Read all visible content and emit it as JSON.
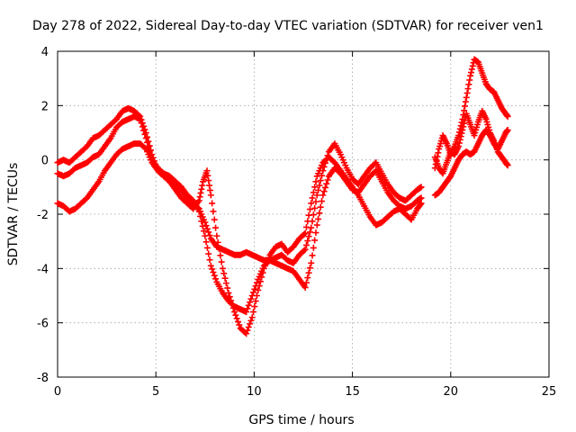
{
  "chart_data": {
    "type": "scatter",
    "title": "Day 278 of 2022, Sidereal Day-to-day VTEC variation (SDTVAR) for receiver ven1",
    "xlabel": "GPS time / hours",
    "ylabel": "SDTVAR / TECUs",
    "xlim": [
      0,
      25
    ],
    "ylim": [
      -8,
      4
    ],
    "x_ticks": [
      0,
      5,
      10,
      15,
      20,
      25
    ],
    "y_ticks": [
      -8,
      -6,
      -4,
      -2,
      0,
      2,
      4
    ],
    "x_tick_labels": [
      "0",
      "5",
      "10",
      "15",
      "20",
      "25"
    ],
    "y_tick_labels": [
      "-8",
      "-6",
      "-4",
      "-2",
      "0",
      "2",
      "4"
    ],
    "grid": true,
    "marker": "plus",
    "color": "#ff0000",
    "series": [
      {
        "points": [
          [
            0.0,
            -0.1
          ],
          [
            0.3,
            0.0
          ],
          [
            0.6,
            -0.1
          ],
          [
            0.9,
            0.1
          ],
          [
            1.2,
            0.3
          ],
          [
            1.5,
            0.5
          ],
          [
            1.8,
            0.8
          ],
          [
            2.1,
            0.9
          ],
          [
            2.4,
            1.1
          ],
          [
            2.7,
            1.3
          ],
          [
            3.0,
            1.5
          ],
          [
            3.3,
            1.8
          ],
          [
            3.6,
            1.9
          ],
          [
            3.9,
            1.8
          ],
          [
            4.2,
            1.6
          ],
          [
            4.5,
            1.0
          ],
          [
            4.8,
            0.2
          ],
          [
            5.1,
            -0.4
          ],
          [
            5.4,
            -0.6
          ],
          [
            5.7,
            -0.7
          ],
          [
            6.0,
            -0.9
          ],
          [
            6.3,
            -1.1
          ],
          [
            6.6,
            -1.4
          ],
          [
            6.9,
            -1.6
          ],
          [
            7.2,
            -1.8
          ],
          [
            7.5,
            -2.3
          ],
          [
            7.8,
            -2.9
          ],
          [
            8.1,
            -3.2
          ],
          [
            8.4,
            -3.3
          ],
          [
            8.7,
            -3.4
          ],
          [
            9.0,
            -3.5
          ],
          [
            9.3,
            -3.5
          ],
          [
            9.6,
            -3.4
          ],
          [
            9.9,
            -3.5
          ],
          [
            10.2,
            -3.6
          ],
          [
            10.5,
            -3.7
          ],
          [
            10.8,
            -3.7
          ],
          [
            11.1,
            -3.6
          ],
          [
            11.4,
            -3.5
          ],
          [
            11.7,
            -3.7
          ],
          [
            12.0,
            -3.8
          ],
          [
            12.3,
            -3.5
          ],
          [
            12.6,
            -3.3
          ],
          [
            12.9,
            -2.5
          ],
          [
            13.2,
            -1.3
          ],
          [
            13.5,
            -0.4
          ],
          [
            13.8,
            0.3
          ],
          [
            14.1,
            0.6
          ],
          [
            14.4,
            0.2
          ],
          [
            14.7,
            -0.3
          ],
          [
            15.0,
            -0.7
          ],
          [
            15.3,
            -0.9
          ],
          [
            15.6,
            -0.6
          ],
          [
            15.9,
            -0.3
          ],
          [
            16.2,
            -0.1
          ],
          [
            16.5,
            -0.5
          ],
          [
            16.8,
            -0.9
          ],
          [
            17.1,
            -1.2
          ],
          [
            17.4,
            -1.4
          ],
          [
            17.7,
            -1.5
          ],
          [
            18.0,
            -1.3
          ],
          [
            18.3,
            -1.1
          ],
          [
            18.5,
            -1.0
          ]
        ]
      },
      {
        "points": [
          [
            0.0,
            -0.5
          ],
          [
            0.3,
            -0.6
          ],
          [
            0.6,
            -0.5
          ],
          [
            0.9,
            -0.3
          ],
          [
            1.2,
            -0.2
          ],
          [
            1.5,
            -0.1
          ],
          [
            1.8,
            0.1
          ],
          [
            2.1,
            0.2
          ],
          [
            2.4,
            0.5
          ],
          [
            2.7,
            0.8
          ],
          [
            3.0,
            1.2
          ],
          [
            3.3,
            1.4
          ],
          [
            3.6,
            1.5
          ],
          [
            3.9,
            1.6
          ],
          [
            4.2,
            1.5
          ],
          [
            4.5,
            0.8
          ],
          [
            4.8,
            0.0
          ],
          [
            5.1,
            -0.3
          ],
          [
            5.4,
            -0.5
          ],
          [
            5.7,
            -0.6
          ],
          [
            6.0,
            -0.8
          ],
          [
            6.3,
            -1.0
          ],
          [
            6.6,
            -1.3
          ],
          [
            6.9,
            -1.5
          ],
          [
            7.2,
            -1.9
          ],
          [
            7.5,
            -2.8
          ],
          [
            7.8,
            -3.9
          ],
          [
            8.1,
            -4.5
          ],
          [
            8.4,
            -4.9
          ],
          [
            8.7,
            -5.2
          ],
          [
            9.0,
            -5.4
          ],
          [
            9.3,
            -5.5
          ],
          [
            9.6,
            -5.6
          ],
          [
            9.9,
            -5.0
          ],
          [
            10.2,
            -4.4
          ],
          [
            10.5,
            -3.9
          ],
          [
            10.8,
            -3.7
          ],
          [
            11.1,
            -3.8
          ],
          [
            11.4,
            -3.9
          ],
          [
            11.7,
            -4.0
          ],
          [
            12.0,
            -4.1
          ],
          [
            12.3,
            -4.4
          ],
          [
            12.6,
            -4.7
          ],
          [
            12.9,
            -3.8
          ],
          [
            13.2,
            -2.4
          ],
          [
            13.5,
            -1.3
          ],
          [
            13.8,
            -0.6
          ],
          [
            14.1,
            -0.3
          ],
          [
            14.4,
            -0.5
          ],
          [
            14.7,
            -0.8
          ],
          [
            15.0,
            -1.1
          ],
          [
            15.3,
            -1.2
          ],
          [
            15.6,
            -0.9
          ],
          [
            15.9,
            -0.6
          ],
          [
            16.2,
            -0.4
          ],
          [
            16.5,
            -0.8
          ],
          [
            16.8,
            -1.2
          ],
          [
            17.1,
            -1.5
          ],
          [
            17.4,
            -1.7
          ],
          [
            17.7,
            -1.8
          ],
          [
            18.0,
            -1.7
          ],
          [
            18.3,
            -1.5
          ],
          [
            18.5,
            -1.4
          ]
        ]
      },
      {
        "points": [
          [
            0.0,
            -1.6
          ],
          [
            0.3,
            -1.7
          ],
          [
            0.6,
            -1.9
          ],
          [
            0.9,
            -1.8
          ],
          [
            1.2,
            -1.6
          ],
          [
            1.5,
            -1.4
          ],
          [
            1.8,
            -1.1
          ],
          [
            2.1,
            -0.8
          ],
          [
            2.4,
            -0.4
          ],
          [
            2.7,
            -0.1
          ],
          [
            3.0,
            0.2
          ],
          [
            3.3,
            0.4
          ],
          [
            3.6,
            0.5
          ],
          [
            3.9,
            0.6
          ],
          [
            4.2,
            0.6
          ],
          [
            4.5,
            0.4
          ],
          [
            4.8,
            -0.1
          ],
          [
            5.1,
            -0.4
          ],
          [
            5.4,
            -0.6
          ],
          [
            5.7,
            -0.8
          ],
          [
            6.0,
            -1.1
          ],
          [
            6.3,
            -1.4
          ],
          [
            6.6,
            -1.6
          ],
          [
            6.9,
            -1.8
          ],
          [
            7.2,
            -1.5
          ],
          [
            7.4,
            -0.8
          ],
          [
            7.6,
            -0.4
          ],
          [
            7.8,
            -1.3
          ],
          [
            8.1,
            -2.8
          ],
          [
            8.4,
            -4.0
          ],
          [
            8.7,
            -4.9
          ],
          [
            9.0,
            -5.6
          ],
          [
            9.3,
            -6.2
          ],
          [
            9.6,
            -6.4
          ],
          [
            9.9,
            -5.8
          ],
          [
            10.2,
            -4.8
          ],
          [
            10.5,
            -4.0
          ],
          [
            10.8,
            -3.5
          ],
          [
            11.1,
            -3.2
          ],
          [
            11.4,
            -3.1
          ],
          [
            11.7,
            -3.4
          ],
          [
            12.0,
            -3.2
          ],
          [
            12.3,
            -2.9
          ],
          [
            12.6,
            -2.7
          ],
          [
            12.9,
            -1.6
          ],
          [
            13.2,
            -0.6
          ],
          [
            13.5,
            -0.1
          ],
          [
            13.8,
            0.1
          ],
          [
            14.1,
            -0.1
          ],
          [
            14.4,
            -0.4
          ],
          [
            14.7,
            -0.7
          ],
          [
            15.0,
            -1.0
          ],
          [
            15.3,
            -1.3
          ],
          [
            15.6,
            -1.7
          ],
          [
            15.9,
            -2.1
          ],
          [
            16.2,
            -2.4
          ],
          [
            16.5,
            -2.3
          ],
          [
            16.8,
            -2.1
          ],
          [
            17.1,
            -1.9
          ],
          [
            17.4,
            -1.8
          ],
          [
            17.7,
            -2.0
          ],
          [
            18.0,
            -2.2
          ],
          [
            18.3,
            -1.8
          ],
          [
            18.5,
            -1.6
          ]
        ]
      },
      {
        "points": [
          [
            19.2,
            -0.3
          ],
          [
            19.4,
            0.4
          ],
          [
            19.6,
            0.9
          ],
          [
            19.8,
            0.6
          ],
          [
            20.0,
            0.2
          ],
          [
            20.2,
            0.5
          ],
          [
            20.4,
            0.9
          ],
          [
            20.6,
            1.5
          ],
          [
            20.8,
            2.3
          ],
          [
            21.0,
            3.1
          ],
          [
            21.2,
            3.7
          ],
          [
            21.4,
            3.6
          ],
          [
            21.6,
            3.2
          ],
          [
            21.8,
            2.8
          ],
          [
            22.0,
            2.6
          ],
          [
            22.2,
            2.5
          ],
          [
            22.4,
            2.2
          ],
          [
            22.6,
            1.9
          ],
          [
            22.8,
            1.7
          ],
          [
            22.9,
            1.6
          ]
        ]
      },
      {
        "points": [
          [
            19.2,
            0.1
          ],
          [
            19.4,
            -0.3
          ],
          [
            19.6,
            -0.5
          ],
          [
            19.8,
            -0.1
          ],
          [
            20.0,
            0.3
          ],
          [
            20.2,
            0.2
          ],
          [
            20.4,
            0.5
          ],
          [
            20.6,
            1.1
          ],
          [
            20.8,
            1.7
          ],
          [
            21.0,
            1.3
          ],
          [
            21.2,
            0.9
          ],
          [
            21.4,
            1.4
          ],
          [
            21.6,
            1.8
          ],
          [
            21.8,
            1.5
          ],
          [
            22.0,
            1.0
          ],
          [
            22.2,
            0.7
          ],
          [
            22.4,
            0.3
          ],
          [
            22.6,
            0.1
          ],
          [
            22.8,
            -0.1
          ],
          [
            22.9,
            -0.2
          ]
        ]
      },
      {
        "points": [
          [
            19.2,
            -1.3
          ],
          [
            19.4,
            -1.2
          ],
          [
            19.6,
            -1.0
          ],
          [
            19.8,
            -0.8
          ],
          [
            20.0,
            -0.6
          ],
          [
            20.2,
            -0.3
          ],
          [
            20.4,
            0.0
          ],
          [
            20.6,
            0.2
          ],
          [
            20.8,
            0.3
          ],
          [
            21.0,
            0.2
          ],
          [
            21.2,
            0.3
          ],
          [
            21.4,
            0.6
          ],
          [
            21.6,
            0.9
          ],
          [
            21.8,
            1.1
          ],
          [
            22.0,
            0.9
          ],
          [
            22.2,
            0.6
          ],
          [
            22.4,
            0.4
          ],
          [
            22.6,
            0.7
          ],
          [
            22.8,
            1.0
          ],
          [
            22.9,
            1.1
          ]
        ]
      }
    ]
  }
}
